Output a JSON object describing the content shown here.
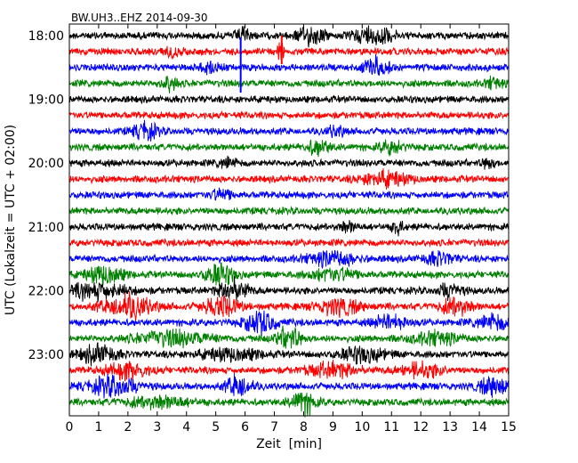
{
  "chart_data": {
    "type": "line",
    "title": "BW.UH3..EHZ 2014-09-30",
    "xlabel": "Zeit  [min]",
    "ylabel": "UTC (Lokalzeit = UTC + 02:00)",
    "xlim": [
      0,
      15
    ],
    "x_ticks": [
      "0",
      "1",
      "2",
      "3",
      "4",
      "5",
      "6",
      "7",
      "8",
      "9",
      "10",
      "11",
      "12",
      "13",
      "14",
      "15"
    ],
    "y_ticks": [
      "18:00",
      "19:00",
      "20:00",
      "21:00",
      "22:00",
      "23:00"
    ],
    "traces_per_hour": 4,
    "trace_minutes": 15,
    "first_trace": "18:00",
    "last_trace": "23:45",
    "series_colors": [
      "#000000",
      "#ff0000",
      "#0000ff",
      "#008000"
    ],
    "grid": false
  }
}
